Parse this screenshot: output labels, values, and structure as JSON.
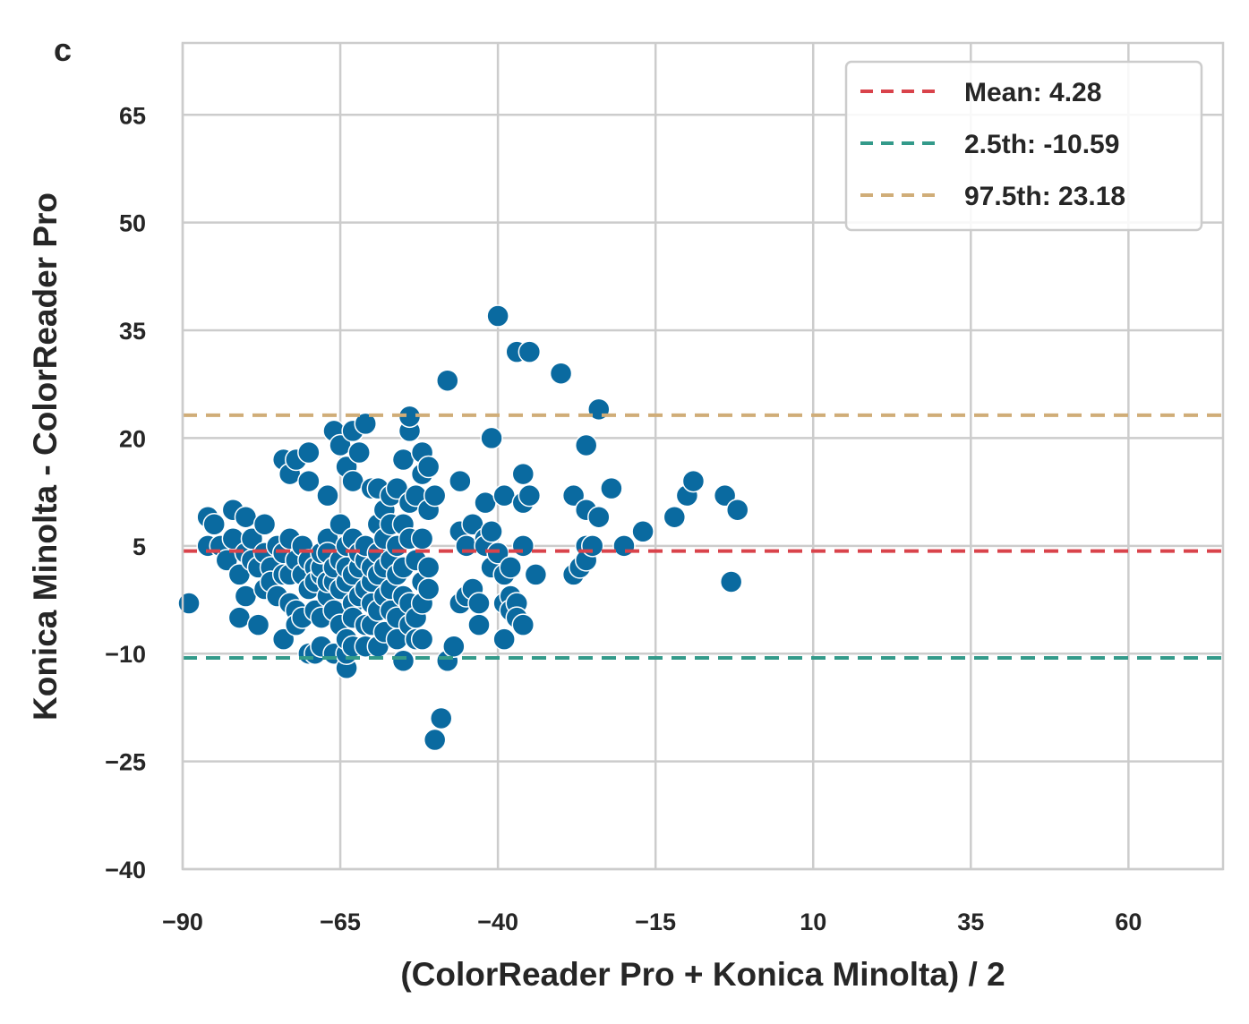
{
  "panel_label": "c",
  "chart_data": {
    "type": "scatter",
    "xlabel": "(ColorReader Pro + Konica Minolta) / 2",
    "ylabel": "Konica Minolta - ColorReader Pro",
    "xlim": [
      -90,
      75
    ],
    "ylim": [
      -40,
      75
    ],
    "xticks": [
      -90,
      -65,
      -40,
      -15,
      10,
      35,
      60
    ],
    "yticks": [
      -40,
      -25,
      -10,
      5,
      20,
      35,
      50,
      65
    ],
    "xtick_labels": [
      "−90",
      "−65",
      "−40",
      "−15",
      "10",
      "35",
      "60"
    ],
    "ytick_labels": [
      "−40",
      "−25",
      "−10",
      "5",
      "20",
      "35",
      "50",
      "65"
    ],
    "grid": true,
    "legend_position": "top-right",
    "point_color": "#0a6aa0",
    "reference_lines": [
      {
        "label": "Mean: 4.28",
        "y": 4.28,
        "color": "#d9434b"
      },
      {
        "label": "2.5th: -10.59",
        "y": -10.59,
        "color": "#339a8a"
      },
      {
        "label": "97.5th: 23.18",
        "y": 23.18,
        "color": "#d0ad78"
      }
    ],
    "points": [
      [
        -89,
        -3
      ],
      [
        -86,
        9
      ],
      [
        -86,
        5
      ],
      [
        -85,
        8
      ],
      [
        -84,
        5
      ],
      [
        -83,
        3
      ],
      [
        -82,
        10
      ],
      [
        -82,
        6
      ],
      [
        -81,
        1
      ],
      [
        -81,
        -5
      ],
      [
        -80,
        4
      ],
      [
        -80,
        -2
      ],
      [
        -80,
        9
      ],
      [
        -79,
        3
      ],
      [
        -79,
        6
      ],
      [
        -78,
        -6
      ],
      [
        -78,
        2
      ],
      [
        -77,
        4
      ],
      [
        -77,
        8
      ],
      [
        -77,
        -1
      ],
      [
        -76,
        2
      ],
      [
        -76,
        0
      ],
      [
        -75,
        -2
      ],
      [
        -75,
        5
      ],
      [
        -74,
        -8
      ],
      [
        -74,
        1
      ],
      [
        -74,
        4
      ],
      [
        -74,
        17
      ],
      [
        -73,
        6
      ],
      [
        -73,
        -3
      ],
      [
        -73,
        1
      ],
      [
        -73,
        15
      ],
      [
        -72,
        -4
      ],
      [
        -72,
        3
      ],
      [
        -72,
        -6
      ],
      [
        -72,
        17
      ],
      [
        -71,
        1
      ],
      [
        -71,
        5
      ],
      [
        -71,
        -5
      ],
      [
        -70,
        -10
      ],
      [
        -70,
        3
      ],
      [
        -70,
        -1
      ],
      [
        -70,
        14
      ],
      [
        -70,
        18
      ],
      [
        -69,
        2
      ],
      [
        -69,
        -4
      ],
      [
        -69,
        0
      ],
      [
        -69,
        -10
      ],
      [
        -68,
        1
      ],
      [
        -68,
        2
      ],
      [
        -68,
        -5
      ],
      [
        -68,
        4
      ],
      [
        -68,
        -9
      ],
      [
        -67,
        -2
      ],
      [
        -67,
        0
      ],
      [
        -67,
        6
      ],
      [
        -67,
        12
      ],
      [
        -67,
        4
      ],
      [
        -66,
        -4
      ],
      [
        -66,
        0
      ],
      [
        -66,
        2
      ],
      [
        -66,
        -10
      ],
      [
        -66,
        21
      ],
      [
        -65,
        8
      ],
      [
        -65,
        -6
      ],
      [
        -65,
        19
      ],
      [
        -65,
        3
      ],
      [
        -65,
        -1
      ],
      [
        -64,
        -12
      ],
      [
        -64,
        -10
      ],
      [
        -64,
        -8
      ],
      [
        -64,
        0
      ],
      [
        -64,
        16
      ],
      [
        -64,
        2
      ],
      [
        -64,
        5
      ],
      [
        -63,
        -3
      ],
      [
        -63,
        1
      ],
      [
        -63,
        -5
      ],
      [
        -63,
        6
      ],
      [
        -63,
        14
      ],
      [
        -63,
        21
      ],
      [
        -63,
        -9
      ],
      [
        -62,
        2
      ],
      [
        -62,
        -2
      ],
      [
        -62,
        4
      ],
      [
        -62,
        18
      ],
      [
        -61,
        -6
      ],
      [
        -61,
        -1
      ],
      [
        -61,
        3
      ],
      [
        -61,
        5
      ],
      [
        -61,
        22
      ],
      [
        -61,
        -9
      ],
      [
        -60,
        -3
      ],
      [
        -60,
        0
      ],
      [
        -60,
        13
      ],
      [
        -60,
        2
      ],
      [
        -60,
        -6
      ],
      [
        -59,
        1
      ],
      [
        -59,
        4
      ],
      [
        -59,
        -4
      ],
      [
        -59,
        8
      ],
      [
        -59,
        13
      ],
      [
        -59,
        -9
      ],
      [
        -58,
        -2
      ],
      [
        -58,
        2
      ],
      [
        -58,
        6
      ],
      [
        -58,
        10
      ],
      [
        -58,
        -7
      ],
      [
        -57,
        -4
      ],
      [
        -57,
        3
      ],
      [
        -57,
        12
      ],
      [
        -57,
        8
      ],
      [
        -57,
        -1
      ],
      [
        -56,
        1
      ],
      [
        -56,
        -5
      ],
      [
        -56,
        5
      ],
      [
        -56,
        -8
      ],
      [
        -56,
        13
      ],
      [
        -55,
        -2
      ],
      [
        -55,
        2
      ],
      [
        -55,
        8
      ],
      [
        -55,
        17
      ],
      [
        -55,
        -11
      ],
      [
        -54,
        6
      ],
      [
        -54,
        -3
      ],
      [
        -54,
        11
      ],
      [
        -54,
        -6
      ],
      [
        -54,
        21
      ],
      [
        -54,
        23
      ],
      [
        -53,
        -8
      ],
      [
        -53,
        3
      ],
      [
        -53,
        12
      ],
      [
        -53,
        -5
      ],
      [
        -52,
        0
      ],
      [
        -52,
        -3
      ],
      [
        -52,
        6
      ],
      [
        -52,
        15
      ],
      [
        -52,
        18
      ],
      [
        -52,
        -8
      ],
      [
        -51,
        -1
      ],
      [
        -51,
        2
      ],
      [
        -51,
        10
      ],
      [
        -51,
        16
      ],
      [
        -50,
        12
      ],
      [
        -50,
        -22
      ],
      [
        -49,
        -19
      ],
      [
        -48,
        -11
      ],
      [
        -48,
        28
      ],
      [
        -47,
        -9
      ],
      [
        -46,
        -3
      ],
      [
        -46,
        7
      ],
      [
        -46,
        14
      ],
      [
        -45,
        5
      ],
      [
        -45,
        -2
      ],
      [
        -44,
        -1
      ],
      [
        -44,
        8
      ],
      [
        -43,
        -6
      ],
      [
        -43,
        -3
      ],
      [
        -42,
        6
      ],
      [
        -42,
        11
      ],
      [
        -42,
        5
      ],
      [
        -41,
        2
      ],
      [
        -41,
        20
      ],
      [
        -41,
        7
      ],
      [
        -40,
        4
      ],
      [
        -40,
        37
      ],
      [
        -39,
        -3
      ],
      [
        -39,
        -8
      ],
      [
        -39,
        1
      ],
      [
        -39,
        12
      ],
      [
        -38,
        -2
      ],
      [
        -38,
        2
      ],
      [
        -38,
        -4
      ],
      [
        -37,
        32
      ],
      [
        -37,
        -3
      ],
      [
        -37,
        -5
      ],
      [
        -36,
        5
      ],
      [
        -36,
        15
      ],
      [
        -36,
        11
      ],
      [
        -36,
        -6
      ],
      [
        -35,
        32
      ],
      [
        -35,
        12
      ],
      [
        -34,
        1
      ],
      [
        -30,
        29
      ],
      [
        -28,
        12
      ],
      [
        -28,
        1
      ],
      [
        -27,
        2
      ],
      [
        -26,
        5
      ],
      [
        -26,
        19
      ],
      [
        -26,
        10
      ],
      [
        -26,
        3
      ],
      [
        -25,
        5
      ],
      [
        -24,
        24
      ],
      [
        -24,
        9
      ],
      [
        -22,
        13
      ],
      [
        -20,
        5
      ],
      [
        -17,
        7
      ],
      [
        -12,
        9
      ],
      [
        -10,
        12
      ],
      [
        -9,
        14
      ],
      [
        -4,
        12
      ],
      [
        -3,
        0
      ],
      [
        -2,
        10
      ]
    ]
  }
}
